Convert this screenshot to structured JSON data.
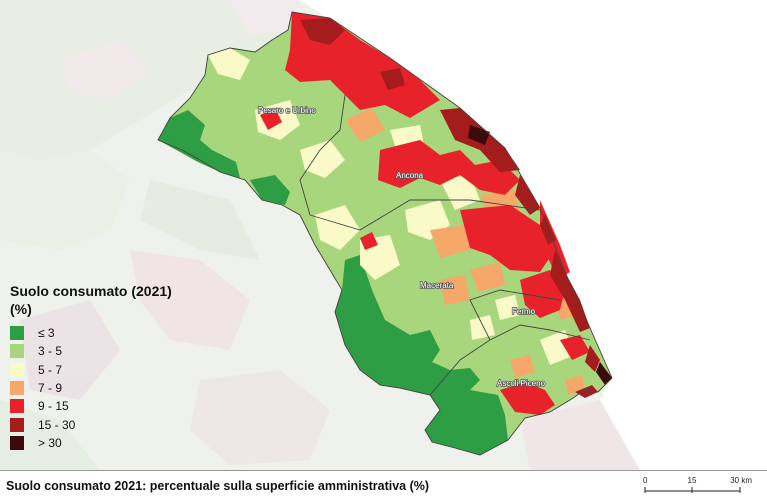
{
  "legend": {
    "title": "Suolo consumato (2021)",
    "unit": "(%)",
    "classes": [
      {
        "label": "≤ 3",
        "color": "#2e9e44"
      },
      {
        "label": "3 - 5",
        "color": "#a8d67c"
      },
      {
        "label": "5 - 7",
        "color": "#fafac8"
      },
      {
        "label": "7 - 9",
        "color": "#f5a86a"
      },
      {
        "label": "9 - 15",
        "color": "#e8222a"
      },
      {
        "label": "15 - 30",
        "color": "#a51c1c"
      },
      {
        "label": "> 30",
        "color": "#3c0a0a"
      }
    ]
  },
  "places": {
    "pesaro": "Pesaro e Urbino",
    "ancona": "Ancona",
    "macerata": "Macerata",
    "fermo": "Fermo",
    "ascoli": "Ascoli Piceno"
  },
  "caption": "Suolo consumato 2021: percentuale sulla superficie amministrativa (%)",
  "scale": {
    "t0": "0",
    "t1": "15",
    "t2": "30 km"
  }
}
